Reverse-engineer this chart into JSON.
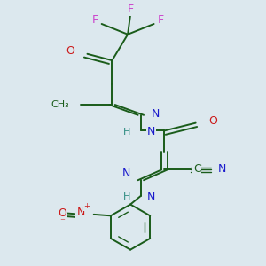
{
  "bg": "#dce8ee",
  "figsize": [
    3.0,
    3.0
  ],
  "dpi": 100,
  "colors": {
    "C": "#1a5c1a",
    "N": "#1a1acc",
    "O": "#cc1a1a",
    "F": "#cc44cc",
    "H": "#2a8a7f",
    "bond": "#1a5c1a"
  }
}
